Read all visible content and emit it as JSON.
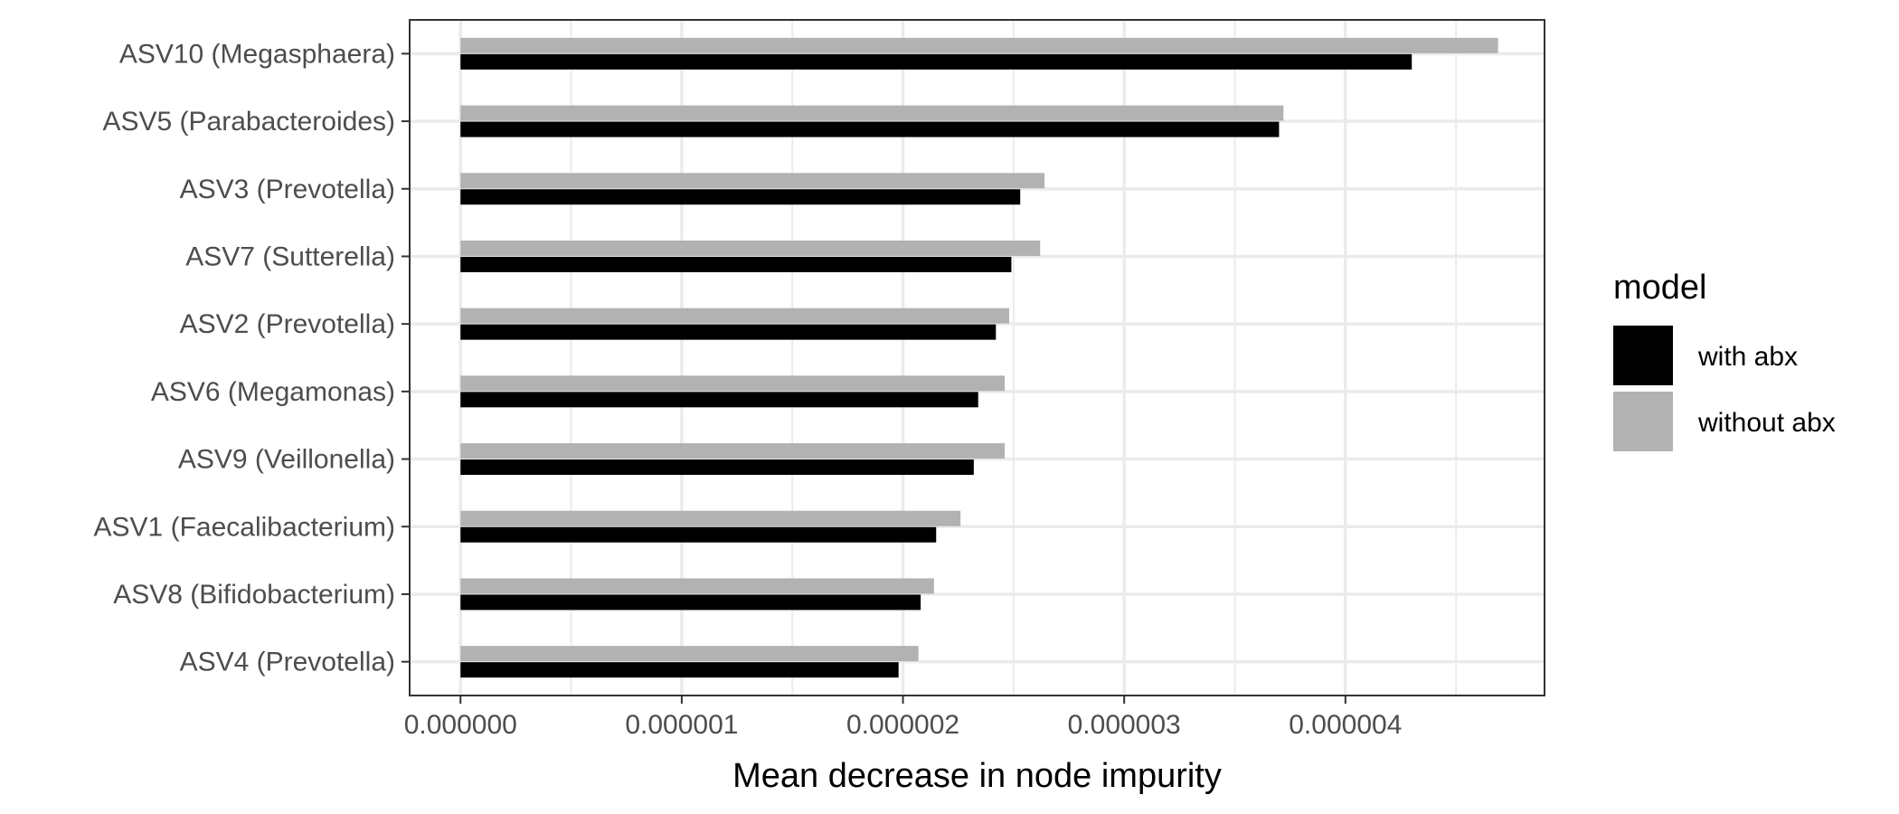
{
  "chart_data": {
    "type": "bar",
    "orientation": "horizontal",
    "categories": [
      "ASV10 (Megasphaera)",
      "ASV5 (Parabacteroides)",
      "ASV3 (Prevotella)",
      "ASV7 (Sutterella)",
      "ASV2 (Prevotella)",
      "ASV6 (Megamonas)",
      "ASV9 (Veillonella)",
      "ASV1 (Faecalibacterium)",
      "ASV8 (Bifidobacterium)",
      "ASV4 (Prevotella)"
    ],
    "series": [
      {
        "name": "with abx",
        "color": "#000000",
        "values": [
          4.3e-06,
          3.7e-06,
          2.53e-06,
          2.49e-06,
          2.42e-06,
          2.34e-06,
          2.32e-06,
          2.15e-06,
          2.08e-06,
          1.98e-06
        ]
      },
      {
        "name": "without abx",
        "color": "#b2b2b2",
        "values": [
          4.69e-06,
          3.72e-06,
          2.64e-06,
          2.62e-06,
          2.48e-06,
          2.46e-06,
          2.46e-06,
          2.26e-06,
          2.14e-06,
          2.07e-06
        ]
      }
    ],
    "xlabel": "Mean decrease in node impurity",
    "ylabel": "",
    "xlim": [
      -2.3e-07,
      4.9e-06
    ],
    "xticks": [
      0,
      1e-06,
      2e-06,
      3e-06,
      4e-06
    ],
    "xtick_labels": [
      "0.000000",
      "0.000001",
      "0.000002",
      "0.000003",
      "0.000004"
    ],
    "grid": true,
    "legend": {
      "title": "model",
      "position": "right",
      "entries": [
        "with abx",
        "without abx"
      ]
    }
  }
}
